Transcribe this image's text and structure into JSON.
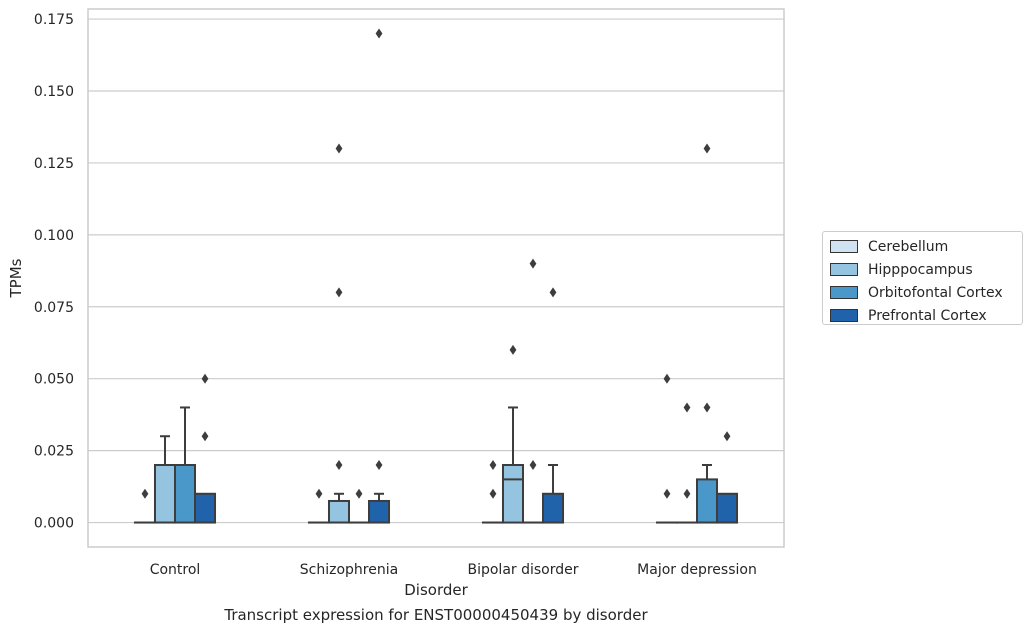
{
  "chart_data": {
    "type": "box",
    "title": "Transcript expression for ENST00000450439 by disorder",
    "xlabel": "Disorder",
    "ylabel": "TPMs",
    "ylim": [
      -0.0085,
      0.1785
    ],
    "yticks": [
      "0.000",
      "0.025",
      "0.050",
      "0.075",
      "0.100",
      "0.125",
      "0.150",
      "0.175"
    ],
    "ytick_values": [
      0,
      0.025,
      0.05,
      0.075,
      0.1,
      0.125,
      0.15,
      0.175
    ],
    "grid": true,
    "legend_position": "right",
    "categories": [
      "Control",
      "Schizophrenia",
      "Bipolar disorder",
      "Major depression"
    ],
    "series": [
      {
        "name": "Cerebellum",
        "color": "#d0e1f2",
        "boxes": [
          {
            "q1": 0,
            "median": 0,
            "q3": 0,
            "whisker_low": 0,
            "whisker_high": 0,
            "outliers": [
              0.01
            ]
          },
          {
            "q1": 0,
            "median": 0,
            "q3": 0,
            "whisker_low": 0,
            "whisker_high": 0,
            "outliers": [
              0.01
            ]
          },
          {
            "q1": 0,
            "median": 0,
            "q3": 0,
            "whisker_low": 0,
            "whisker_high": 0,
            "outliers": [
              0.01,
              0.02
            ]
          },
          {
            "q1": 0,
            "median": 0,
            "q3": 0,
            "whisker_low": 0,
            "whisker_high": 0,
            "outliers": [
              0.01,
              0.05
            ]
          }
        ]
      },
      {
        "name": "Hipppocampus",
        "color": "#94c4df",
        "boxes": [
          {
            "q1": 0,
            "median": 0,
            "q3": 0.02,
            "whisker_low": 0,
            "whisker_high": 0.03,
            "outliers": []
          },
          {
            "q1": 0,
            "median": 0,
            "q3": 0.0075,
            "whisker_low": 0,
            "whisker_high": 0.01,
            "outliers": [
              0.02,
              0.08,
              0.13
            ]
          },
          {
            "q1": 0,
            "median": 0.015,
            "q3": 0.02,
            "whisker_low": 0,
            "whisker_high": 0.04,
            "outliers": [
              0.06
            ]
          },
          {
            "q1": 0,
            "median": 0,
            "q3": 0,
            "whisker_low": 0,
            "whisker_high": 0,
            "outliers": [
              0.01,
              0.04
            ]
          }
        ]
      },
      {
        "name": "Orbitofontal Cortex",
        "color": "#4a98c9",
        "boxes": [
          {
            "q1": 0,
            "median": 0,
            "q3": 0.02,
            "whisker_low": 0,
            "whisker_high": 0.04,
            "outliers": []
          },
          {
            "q1": 0,
            "median": 0,
            "q3": 0,
            "whisker_low": 0,
            "whisker_high": 0,
            "outliers": [
              0.01
            ]
          },
          {
            "q1": 0,
            "median": 0,
            "q3": 0,
            "whisker_low": 0,
            "whisker_high": 0,
            "outliers": [
              0.02,
              0.09
            ]
          },
          {
            "q1": 0,
            "median": 0,
            "q3": 0.015,
            "whisker_low": 0,
            "whisker_high": 0.02,
            "outliers": [
              0.04,
              0.13
            ]
          }
        ]
      },
      {
        "name": "Prefrontal Cortex",
        "color": "#2163aa",
        "boxes": [
          {
            "q1": 0,
            "median": 0,
            "q3": 0.01,
            "whisker_low": 0,
            "whisker_high": 0.01,
            "outliers": [
              0.03,
              0.05
            ]
          },
          {
            "q1": 0,
            "median": 0,
            "q3": 0.0075,
            "whisker_low": 0,
            "whisker_high": 0.01,
            "outliers": [
              0.02,
              0.17
            ]
          },
          {
            "q1": 0,
            "median": 0,
            "q3": 0.01,
            "whisker_low": 0,
            "whisker_high": 0.02,
            "outliers": [
              0.08
            ]
          },
          {
            "q1": 0,
            "median": 0,
            "q3": 0.01,
            "whisker_low": 0,
            "whisker_high": 0.01,
            "outliers": [
              0.03
            ]
          }
        ]
      }
    ]
  }
}
